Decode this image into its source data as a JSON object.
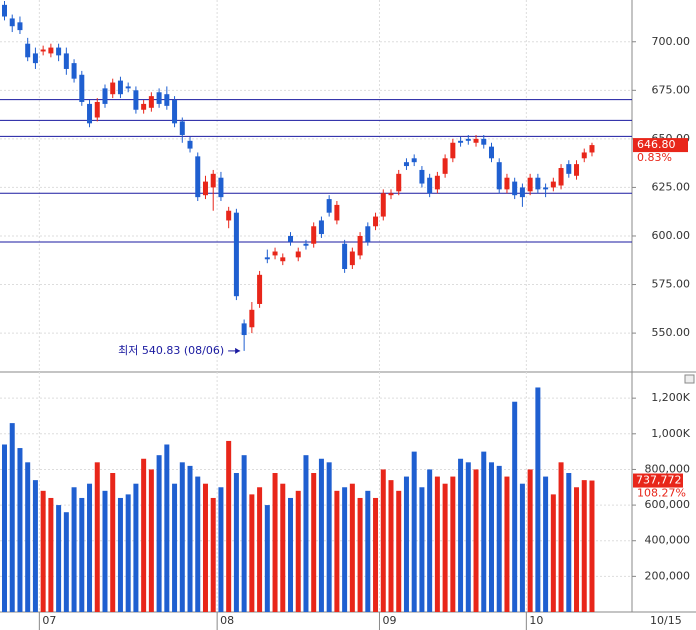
{
  "chart_data": [
    {
      "type": "candlestick",
      "categories": [
        null,
        null,
        null,
        null,
        null,
        "07",
        null,
        null,
        null,
        null,
        null,
        null,
        null,
        null,
        null,
        null,
        null,
        null,
        null,
        null,
        null,
        null,
        null,
        null,
        null,
        null,
        null,
        null,
        "08",
        null,
        null,
        null,
        null,
        null,
        null,
        null,
        null,
        null,
        null,
        null,
        null,
        null,
        null,
        null,
        null,
        null,
        null,
        null,
        null,
        "09",
        null,
        null,
        null,
        null,
        null,
        null,
        null,
        null,
        null,
        null,
        null,
        null,
        null,
        null,
        null,
        null,
        null,
        null,
        "10",
        null,
        null,
        null,
        null,
        null,
        null,
        null,
        null
      ],
      "open": [
        719,
        712,
        710,
        699,
        694,
        695,
        694,
        697,
        694,
        689,
        683,
        668,
        661,
        676,
        673,
        680,
        677,
        675,
        665,
        666,
        674,
        673,
        670,
        659,
        649,
        641,
        621,
        625,
        630,
        608,
        612,
        555,
        553,
        565,
        589,
        590,
        587,
        600,
        589,
        596,
        596,
        608,
        619,
        608,
        596,
        585,
        590,
        605,
        605,
        610,
        621,
        623,
        638,
        640,
        634,
        630,
        624,
        632,
        640,
        649,
        650,
        648,
        650,
        646,
        638,
        624,
        628,
        625,
        623,
        630,
        625,
        625,
        626,
        637,
        631,
        640,
        643
      ],
      "high": [
        721,
        714,
        713,
        702,
        697,
        698,
        699,
        699,
        697,
        691,
        685,
        670,
        671,
        678,
        681,
        682,
        679,
        677,
        670,
        674,
        676,
        677,
        672,
        661,
        651,
        643,
        631,
        634,
        633,
        615,
        614,
        557,
        566,
        582,
        593,
        594,
        591,
        602,
        594,
        598,
        607,
        610,
        621,
        618,
        598,
        594,
        602,
        607,
        612,
        624,
        624,
        634,
        640,
        642,
        636,
        632,
        633,
        642,
        650,
        651,
        652,
        652,
        652,
        648,
        640,
        632,
        630,
        627,
        632,
        632,
        627,
        630,
        637,
        639,
        639,
        645,
        648
      ],
      "low": [
        711,
        705,
        704,
        690,
        686,
        693,
        692,
        690,
        683,
        679,
        667,
        656,
        659,
        666,
        671,
        671,
        674,
        663,
        663,
        664,
        666,
        665,
        656,
        648,
        643,
        618,
        619,
        613,
        618,
        604,
        567,
        540.83,
        550,
        563,
        586,
        588,
        585,
        595,
        587,
        593,
        594,
        599,
        610,
        606,
        581,
        583,
        588,
        595,
        603,
        608,
        619,
        621,
        634,
        636,
        625,
        620,
        622,
        630,
        638,
        646,
        647,
        646,
        645,
        638,
        622,
        622,
        619,
        615,
        621,
        622,
        620,
        623,
        624,
        630,
        629,
        638,
        641
      ],
      "close": [
        713,
        708,
        706,
        692,
        689,
        696,
        697,
        693,
        686,
        681,
        669,
        658,
        669,
        668,
        679,
        673,
        676,
        665,
        668,
        672,
        668,
        667,
        658,
        652,
        645,
        620,
        628,
        632,
        620,
        613,
        569,
        549,
        562,
        580,
        588,
        592,
        589,
        597,
        592,
        595,
        605,
        601,
        612,
        616,
        583,
        592,
        600,
        597,
        610,
        622,
        622,
        632,
        636,
        638,
        627,
        622,
        631,
        640,
        648,
        648,
        649,
        650,
        647,
        640,
        624,
        630,
        621,
        620,
        630,
        624,
        624,
        628,
        635,
        632,
        637,
        643,
        646.8
      ],
      "up_color": "#e8261a",
      "down_color": "#1f5fd0",
      "ylim": [
        531,
        721.5
      ],
      "yticks": [
        {
          "value": 550,
          "label": "550.00"
        },
        {
          "value": 575,
          "label": "575.00"
        },
        {
          "value": 600,
          "label": "600.00"
        },
        {
          "value": 625,
          "label": "625.00"
        },
        {
          "value": 650,
          "label": "650.00"
        },
        {
          "value": 675,
          "label": "675.00"
        },
        {
          "value": 700,
          "label": "700.00"
        }
      ],
      "hlines": [
        670.2,
        659.5,
        651.3,
        622,
        596.9
      ],
      "hline_color": "#1a1aa0",
      "grid": true,
      "annotation": "최저 540.83 (08/06)",
      "last_value_label": "646.80",
      "change_label": "0.83%",
      "cursor_date": "10/15"
    },
    {
      "type": "volume",
      "values": [
        940000,
        1060000,
        920000,
        840000,
        740000,
        680000,
        640000,
        600000,
        560000,
        700000,
        640000,
        720000,
        840000,
        680000,
        780000,
        640000,
        660000,
        720000,
        860000,
        800000,
        880000,
        940000,
        720000,
        840000,
        820000,
        760000,
        720000,
        640000,
        700000,
        960000,
        780000,
        880000,
        660000,
        700000,
        600000,
        780000,
        720000,
        640000,
        680000,
        880000,
        780000,
        860000,
        840000,
        680000,
        700000,
        720000,
        640000,
        680000,
        640000,
        800000,
        740000,
        680000,
        760000,
        900000,
        700000,
        800000,
        760000,
        720000,
        760000,
        860000,
        840000,
        800000,
        900000,
        840000,
        820000,
        760000,
        1180000,
        720000,
        800000,
        1260000,
        760000,
        660000,
        840000,
        780000,
        700000,
        740000,
        737772
      ],
      "ylim": [
        0,
        1330000
      ],
      "yticks": [
        {
          "value": 200000,
          "label": "200,000"
        },
        {
          "value": 400000,
          "label": "400,000"
        },
        {
          "value": 600000,
          "label": "600,000"
        },
        {
          "value": 800000,
          "label": "800,000"
        },
        {
          "value": 1000000,
          "label": "1,000K"
        },
        {
          "value": 1200000,
          "label": "1,200K"
        }
      ],
      "last_value_label": "737,772",
      "ratio_label": "108.27%"
    }
  ]
}
